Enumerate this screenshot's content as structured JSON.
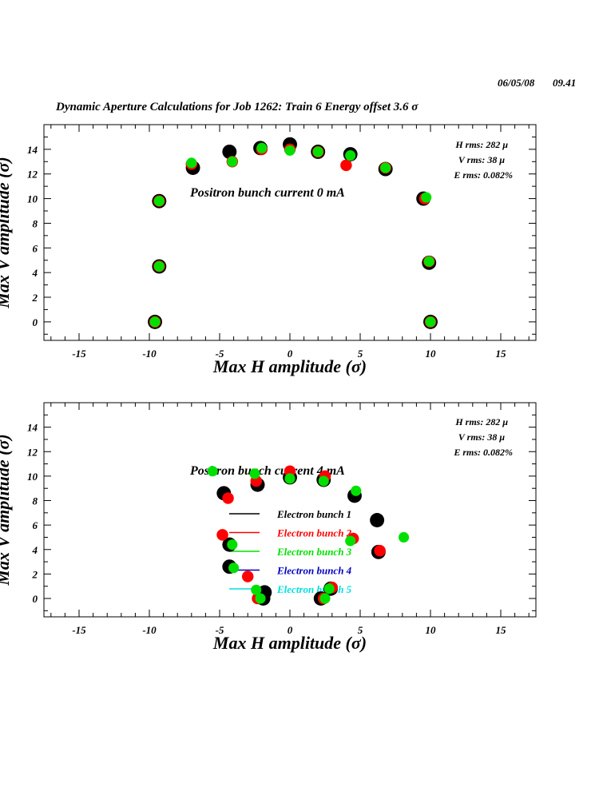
{
  "header": {
    "date": "06/05/08",
    "time": "09.41",
    "title": "Dynamic Aperture Calculations for Job 1262:  Train 6   Energy offset  3.6 σ"
  },
  "stats": {
    "h_rms": "H rms: 282 μ",
    "v_rms": "V rms: 38 μ",
    "e_rms": "E rms: 0.082%"
  },
  "colors": {
    "bunch1": "#000000",
    "bunch2": "#ff0000",
    "bunch3": "#00e000",
    "bunch4": "#0000c0",
    "bunch5": "#00e0e0"
  },
  "chart_data": [
    {
      "type": "scatter",
      "annotation": "Positron bunch current  0 mA",
      "xlabel": "Max H amplitude (σ)",
      "ylabel": "Max V amplitude (σ)",
      "xlim": [
        -17.5,
        17.5
      ],
      "ylim": [
        -1.5,
        16
      ],
      "xticks": [
        -15,
        -10,
        -5,
        0,
        5,
        10,
        15
      ],
      "yticks": [
        0,
        2,
        4,
        6,
        8,
        10,
        12,
        14
      ],
      "series": [
        {
          "name": "Electron bunch 1",
          "color": "#000000",
          "points": [
            [
              -9.6,
              0
            ],
            [
              -9.3,
              4.5
            ],
            [
              -9.3,
              9.8
            ],
            [
              -6.9,
              12.5
            ],
            [
              -4.3,
              13.8
            ],
            [
              -2.1,
              14.1
            ],
            [
              0,
              14.4
            ],
            [
              2.0,
              13.8
            ],
            [
              4.3,
              13.6
            ],
            [
              6.8,
              12.4
            ],
            [
              9.5,
              10.0
            ],
            [
              9.9,
              4.8
            ],
            [
              10.0,
              0
            ]
          ]
        },
        {
          "name": "Electron bunch 2",
          "color": "#ff0000",
          "points": [
            [
              -9.6,
              0
            ],
            [
              -9.3,
              4.5
            ],
            [
              -9.3,
              9.8
            ],
            [
              -7.0,
              12.8
            ],
            [
              -4.1,
              13.0
            ],
            [
              -2.0,
              14.0
            ],
            [
              0,
              14.0
            ],
            [
              2.0,
              13.8
            ],
            [
              4.0,
              12.7
            ],
            [
              6.8,
              12.5
            ],
            [
              9.6,
              10.0
            ],
            [
              9.9,
              4.9
            ],
            [
              10.0,
              0
            ]
          ]
        },
        {
          "name": "Electron bunch 3",
          "color": "#00e000",
          "points": [
            [
              -9.6,
              0
            ],
            [
              -9.3,
              4.5
            ],
            [
              -9.3,
              9.8
            ],
            [
              -7.0,
              12.9
            ],
            [
              -4.1,
              13.0
            ],
            [
              -2.0,
              14.1
            ],
            [
              0,
              13.9
            ],
            [
              2.0,
              13.8
            ],
            [
              4.3,
              13.5
            ],
            [
              6.8,
              12.5
            ],
            [
              9.7,
              10.1
            ],
            [
              9.9,
              4.9
            ],
            [
              10.0,
              0
            ]
          ]
        }
      ]
    },
    {
      "type": "scatter",
      "annotation": "Positron bunch current  4 mA",
      "xlabel": "Max H amplitude (σ)",
      "ylabel": "Max V amplitude (σ)",
      "xlim": [
        -17.5,
        17.5
      ],
      "ylim": [
        -1.5,
        16
      ],
      "xticks": [
        -15,
        -10,
        -5,
        0,
        5,
        10,
        15
      ],
      "yticks": [
        0,
        2,
        4,
        6,
        8,
        10,
        12,
        14
      ],
      "legend": [
        "Electron bunch 1",
        "Electron bunch 2",
        "Electron bunch 3",
        "Electron bunch 4",
        "Electron bunch 5"
      ],
      "series": [
        {
          "name": "Electron bunch 1",
          "color": "#000000",
          "points": [
            [
              -4.7,
              8.6
            ],
            [
              -2.3,
              9.3
            ],
            [
              0,
              9.9
            ],
            [
              2.4,
              9.7
            ],
            [
              4.6,
              8.4
            ],
            [
              6.2,
              6.4
            ],
            [
              6.3,
              3.8
            ],
            [
              -4.3,
              4.4
            ],
            [
              -4.3,
              2.6
            ],
            [
              -1.8,
              0.5
            ],
            [
              -1.9,
              0
            ],
            [
              2.2,
              0
            ],
            [
              2.9,
              0.8
            ]
          ]
        },
        {
          "name": "Electron bunch 2",
          "color": "#ff0000",
          "points": [
            [
              -4.4,
              8.2
            ],
            [
              -2.4,
              9.6
            ],
            [
              0,
              10.4
            ],
            [
              2.5,
              10.0
            ],
            [
              4.5,
              4.9
            ],
            [
              6.4,
              3.9
            ],
            [
              -4.8,
              5.2
            ],
            [
              -3.0,
              1.8
            ],
            [
              -2.3,
              0
            ],
            [
              3.0,
              0.9
            ],
            [
              2.4,
              0
            ]
          ]
        },
        {
          "name": "Electron bunch 3",
          "color": "#00e000",
          "points": [
            [
              -5.5,
              10.4
            ],
            [
              -2.5,
              10.2
            ],
            [
              0,
              9.8
            ],
            [
              2.4,
              9.6
            ],
            [
              4.7,
              8.8
            ],
            [
              8.1,
              5.0
            ],
            [
              4.3,
              4.7
            ],
            [
              -4.1,
              4.4
            ],
            [
              -4.0,
              2.5
            ],
            [
              -2.4,
              0.7
            ],
            [
              -2.1,
              0
            ],
            [
              2.5,
              0
            ],
            [
              2.8,
              0.8
            ]
          ]
        }
      ]
    }
  ]
}
